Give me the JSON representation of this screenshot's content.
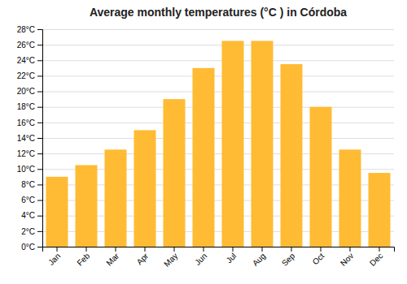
{
  "chart_data": {
    "type": "bar",
    "title": "Average monthly temperatures (°C ) in Córdoba",
    "categories": [
      "Jan",
      "Feb",
      "Mar",
      "Apr",
      "May",
      "Jun",
      "Jul",
      "Aug",
      "Sep",
      "Oct",
      "Nov",
      "Dec"
    ],
    "values": [
      9.0,
      10.5,
      12.5,
      15.0,
      19.0,
      23.0,
      26.5,
      26.5,
      23.5,
      18.0,
      12.5,
      9.5
    ],
    "color": "#FFBB33",
    "ylim": [
      0,
      28
    ],
    "yticks": [
      {
        "value": 0,
        "label": "0°C"
      },
      {
        "value": 2,
        "label": "2°C"
      },
      {
        "value": 4,
        "label": "4°C"
      },
      {
        "value": 6,
        "label": "6°C"
      },
      {
        "value": 8,
        "label": "8°C"
      },
      {
        "value": 10,
        "label": "10°C"
      },
      {
        "value": 12,
        "label": "12°C"
      },
      {
        "value": 14,
        "label": "14°C"
      },
      {
        "value": 16,
        "label": "16°C"
      },
      {
        "value": 18,
        "label": "18°C"
      },
      {
        "value": 20,
        "label": "20°C"
      },
      {
        "value": 22,
        "label": "22°C"
      },
      {
        "value": 24,
        "label": "24°C"
      },
      {
        "value": 26,
        "label": "26°C"
      },
      {
        "value": 28,
        "label": "28°C"
      }
    ],
    "grid": true
  }
}
